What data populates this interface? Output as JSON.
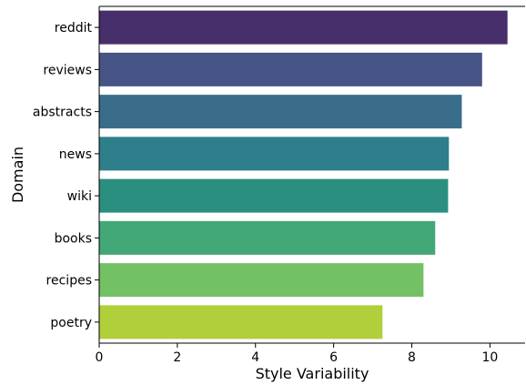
{
  "chart_data": {
    "type": "bar",
    "orientation": "horizontal",
    "categories": [
      "reddit",
      "reviews",
      "abstracts",
      "news",
      "wiki",
      "books",
      "recipes",
      "poetry"
    ],
    "values": [
      10.45,
      9.8,
      9.28,
      8.95,
      8.93,
      8.6,
      8.3,
      7.25
    ],
    "colors": [
      "#472f6b",
      "#475486",
      "#3a6d8b",
      "#2e7f8b",
      "#2b8f80",
      "#43a877",
      "#74c065",
      "#b1cf3b"
    ],
    "xlabel": "Style Variability",
    "ylabel": "Domain",
    "xlim": [
      0,
      10.9
    ],
    "xticks": [
      0,
      2,
      4,
      6,
      8,
      10
    ],
    "xtick_labels": [
      "0",
      "2",
      "4",
      "6",
      "8",
      "10"
    ],
    "grid": false
  }
}
